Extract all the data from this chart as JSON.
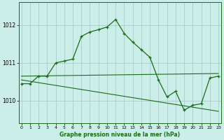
{
  "title": "Graphe pression niveau de la mer (hPa)",
  "background_color": "#cceee8",
  "grid_color": "#aacccc",
  "line_color": "#1a6b1a",
  "x_ticks": [
    0,
    1,
    2,
    3,
    4,
    5,
    6,
    7,
    8,
    9,
    10,
    11,
    12,
    13,
    14,
    15,
    16,
    17,
    18,
    19,
    20,
    21,
    22,
    23
  ],
  "y_ticks": [
    1010,
    1011,
    1012
  ],
  "ylim": [
    1009.4,
    1012.6
  ],
  "xlim": [
    -0.3,
    23.3
  ],
  "main_series": [
    [
      0,
      1010.45
    ],
    [
      1,
      1010.45
    ],
    [
      2,
      1010.65
    ],
    [
      3,
      1010.65
    ],
    [
      4,
      1011.0
    ],
    [
      5,
      1011.05
    ],
    [
      6,
      1011.1
    ],
    [
      7,
      1011.7
    ],
    [
      8,
      1011.82
    ],
    [
      9,
      1011.88
    ],
    [
      10,
      1011.95
    ],
    [
      11,
      1012.15
    ],
    [
      12,
      1011.78
    ],
    [
      13,
      1011.55
    ],
    [
      14,
      1011.35
    ],
    [
      15,
      1011.15
    ],
    [
      16,
      1010.55
    ],
    [
      17,
      1010.1
    ],
    [
      18,
      1010.25
    ],
    [
      19,
      1009.75
    ],
    [
      20,
      1009.88
    ],
    [
      21,
      1009.92
    ],
    [
      22,
      1010.6
    ],
    [
      23,
      1010.65
    ]
  ],
  "flat_line": [
    [
      0,
      1010.65
    ],
    [
      23,
      1010.72
    ]
  ],
  "trend_line": [
    [
      0,
      1010.55
    ],
    [
      23,
      1009.72
    ]
  ]
}
